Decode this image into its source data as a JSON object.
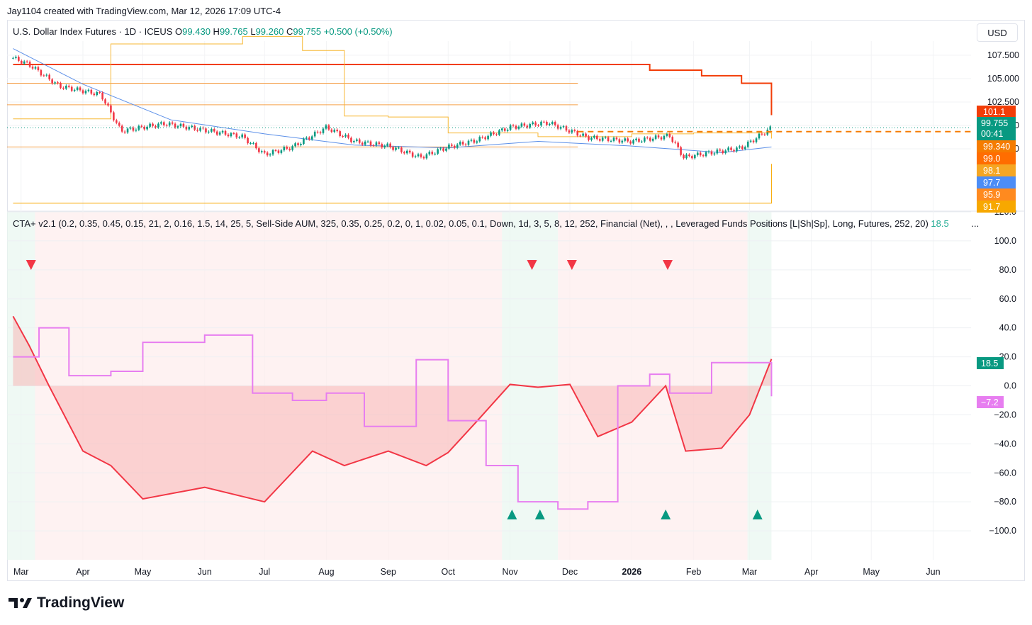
{
  "header": {
    "attribution": "Jay1104 created with TradingView.com, Mar 12, 2026 17:09 UTC-4",
    "currency_button": "USD",
    "brand": "TradingView"
  },
  "price_pane": {
    "symbol": "U.S. Dollar Index Futures · 1D · ICEUS",
    "ohlc": {
      "o_label": "O",
      "o": "99.430",
      "h_label": "H",
      "h": "99.765",
      "l_label": "L",
      "l": "99.260",
      "c_label": "C",
      "c": "99.755",
      "change": "+0.500 (+0.50%)"
    },
    "y_ticks": [
      "107.500",
      "105.000",
      "102.500",
      "100.000",
      "97.500"
    ],
    "last_price_badge": "99.755",
    "countdown": "00:41",
    "badges": [
      {
        "label": "101.1",
        "color": "#f23d08"
      },
      {
        "label": "99.340",
        "color": "#f57c00"
      },
      {
        "label": "99.0",
        "color": "#ff6d00"
      },
      {
        "label": "98.1",
        "color": "#f5a623"
      },
      {
        "label": "97.7",
        "color": "#4c8df6"
      },
      {
        "label": "95.9",
        "color": "#ff8a1f"
      },
      {
        "label": "91.7",
        "color": "#f7a800"
      }
    ]
  },
  "indicator_pane": {
    "legend": "CTA+ v2.1 (0.2, 0.35, 0.45, 0.15, 21, 2, 0.16, 1.5, 14, 25, 5, Sell-Side AUM, 325, 0.35, 0.25, 0.2, 0, 1, 0.02, 0.05, 0.1, Down, 1d, 3, 5, 8, 12, 252, Financial (Net), , , Leveraged Funds Positions [L|Sh|Sp], Long, Futures, 252, 20)",
    "legend_value": "18.5",
    "more": "...",
    "y_ticks": [
      "120.0",
      "100.0",
      "80.0",
      "60.0",
      "40.0",
      "20.0",
      "0.0",
      "−20.0",
      "−40.0",
      "−60.0",
      "−80.0",
      "−100.0"
    ],
    "badge_green": "18.5",
    "badge_magenta": "−7.2"
  },
  "x_axis": [
    "Mar",
    "Apr",
    "May",
    "Jun",
    "Jul",
    "Aug",
    "Sep",
    "Oct",
    "Nov",
    "Dec",
    "2026",
    "Feb",
    "Mar",
    "Apr",
    "May",
    "Jun"
  ],
  "chart_data": [
    {
      "type": "candlestick",
      "title": "U.S. Dollar Index Futures · 1D · ICEUS",
      "ylim": [
        91,
        109
      ],
      "series": [
        {
          "name": "price_close",
          "x": [
            "2025-02-25",
            "2025-03-05",
            "2025-03-20",
            "2025-04-10",
            "2025-04-20",
            "2025-05-12",
            "2025-06-01",
            "2025-06-20",
            "2025-07-01",
            "2025-07-15",
            "2025-08-01",
            "2025-08-15",
            "2025-09-01",
            "2025-09-17",
            "2025-10-01",
            "2025-10-15",
            "2025-11-01",
            "2025-11-20",
            "2025-12-10",
            "2026-01-01",
            "2026-01-20",
            "2026-01-27",
            "2026-02-10",
            "2026-02-25",
            "2026-03-12"
          ],
          "values": [
            107.2,
            106.5,
            104.2,
            103.3,
            99.4,
            100.2,
            99.5,
            98.8,
            96.9,
            97.7,
            99.8,
            98.3,
            97.8,
            96.6,
            97.7,
            98.4,
            99.8,
            100.3,
            98.7,
            98.3,
            98.9,
            96.6,
            97.1,
            97.6,
            99.755
          ]
        },
        {
          "name": "line_yellow_upper",
          "x": [
            "2025-02-25",
            "2025-04-15",
            "2025-06-20",
            "2025-07-20",
            "2025-08-10",
            "2025-09-01",
            "2025-10-01",
            "2025-11-15",
            "2026-01-01",
            "2026-02-01",
            "2026-03-12"
          ],
          "values": [
            100.7,
            108.7,
            109.5,
            108.0,
            101.0,
            100.9,
            99.2,
            98.8,
            99.1,
            99.2,
            98.6
          ]
        },
        {
          "name": "line_blue_ma",
          "x": [
            "2025-02-25",
            "2025-04-01",
            "2025-05-15",
            "2025-07-01",
            "2025-08-15",
            "2025-10-01",
            "2025-11-15",
            "2026-01-01",
            "2026-02-15",
            "2026-03-12"
          ],
          "values": [
            108.2,
            104.4,
            100.6,
            99.1,
            97.9,
            97.6,
            98.3,
            97.8,
            97.1,
            97.7
          ]
        },
        {
          "name": "level_red_upper",
          "x": [
            "2025-02-25",
            "2025-12-05",
            "2026-01-10",
            "2026-02-05",
            "2026-02-25",
            "2026-03-12"
          ],
          "values": [
            106.5,
            106.5,
            105.9,
            105.3,
            104.5,
            101.1
          ]
        },
        {
          "name": "level_orange_lower",
          "x": [
            "2025-02-25",
            "2025-12-05",
            "2026-02-20",
            "2026-03-12"
          ],
          "values": [
            91.7,
            91.7,
            91.7,
            95.9
          ]
        }
      ]
    },
    {
      "type": "line",
      "title": "CTA+ v2.1",
      "ylim": [
        -120,
        120
      ],
      "series": [
        {
          "name": "cta_position",
          "x": [
            "2025-02-25",
            "2025-03-05",
            "2025-03-15",
            "2025-04-01",
            "2025-04-15",
            "2025-05-01",
            "2025-06-01",
            "2025-07-01",
            "2025-07-25",
            "2025-08-10",
            "2025-09-01",
            "2025-09-20",
            "2025-10-01",
            "2025-10-15",
            "2025-11-01",
            "2025-11-15",
            "2025-12-01",
            "2025-12-15",
            "2026-01-01",
            "2026-01-18",
            "2026-01-28",
            "2026-02-15",
            "2026-03-01",
            "2026-03-12"
          ],
          "values": [
            48,
            28,
            0,
            -45,
            -55,
            -78,
            -70,
            -80,
            -45,
            -55,
            -45,
            -55,
            -46,
            -25,
            1,
            -1,
            1,
            -35,
            -25,
            0,
            -45,
            -43,
            -20,
            18.5
          ]
        },
        {
          "name": "leveraged_funds",
          "x": [
            "2025-02-25",
            "2025-03-10",
            "2025-03-25",
            "2025-04-15",
            "2025-05-01",
            "2025-06-01",
            "2025-06-25",
            "2025-07-15",
            "2025-08-01",
            "2025-08-20",
            "2025-09-15",
            "2025-10-01",
            "2025-10-20",
            "2025-11-05",
            "2025-11-25",
            "2025-12-10",
            "2025-12-25",
            "2026-01-10",
            "2026-01-20",
            "2026-02-10",
            "2026-03-12"
          ],
          "values": [
            20,
            40,
            7,
            10,
            30,
            35,
            -5,
            -10,
            -5,
            -28,
            18,
            -24,
            -55,
            -80,
            -85,
            -80,
            0,
            8,
            -5,
            16,
            -7.2
          ]
        }
      ]
    }
  ]
}
